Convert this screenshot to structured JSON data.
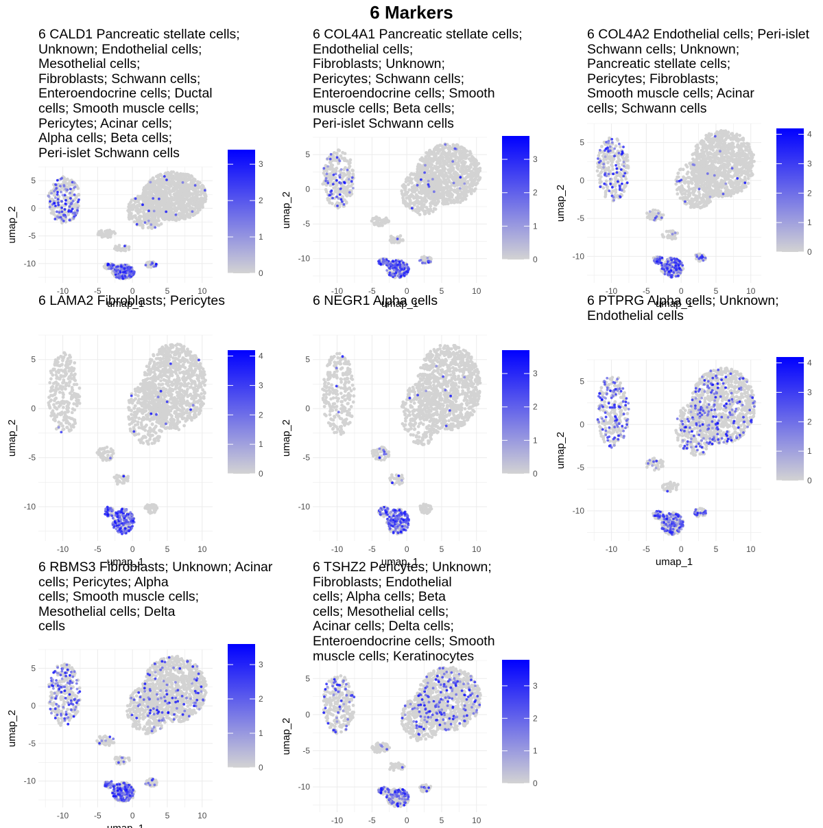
{
  "figure": {
    "title": "6 Markers"
  },
  "axis_labels": {
    "x": "umap_1",
    "y": "umap_2"
  },
  "colors": {
    "low": "#d3d3d3",
    "high": "#0000ff",
    "grid": "#ebebeb"
  },
  "chart_data": [
    {
      "type": "scatter",
      "gene": "CALD1",
      "title": "6 CALD1 Pancreatic stellate cells;\nUnknown; Endothelial cells;\nMesothelial cells;\nFibroblasts; Schwann cells;\nEnteroendocrine cells; Ductal\ncells; Smooth muscle cells;\nPericytes; Acinar cells;\nAlpha cells; Beta cells;\nPeri-islet Schwann cells",
      "xlabel": "umap_1",
      "ylabel": "umap_2",
      "xlim": [
        -13.5,
        11.5
      ],
      "ylim": [
        -13.5,
        7.5
      ],
      "x_ticks": [
        -10,
        -5,
        0,
        5,
        10
      ],
      "y_ticks": [
        5,
        0,
        -5,
        -10
      ],
      "colorbar": {
        "min": 0,
        "max": 3.4,
        "ticks": [
          0,
          1,
          2,
          3
        ]
      },
      "expression": {
        "stellate_cluster": 0.35,
        "main_cluster": 0.02,
        "small_clusters": 0.05,
        "islet_cluster": 0.55,
        "right_cluster": 0.12
      }
    },
    {
      "type": "scatter",
      "gene": "COL4A1",
      "title": "6 COL4A1 Pancreatic stellate cells;\nEndothelial cells;\nFibroblasts; Unknown;\nPericytes; Schwann cells;\nEnteroendocrine cells; Smooth\nmuscle cells; Beta cells;\nPeri-islet Schwann cells",
      "xlabel": "umap_1",
      "ylabel": "umap_2",
      "xlim": [
        -13.5,
        11.5
      ],
      "ylim": [
        -13.5,
        7.5
      ],
      "x_ticks": [
        -10,
        -5,
        0,
        5,
        10
      ],
      "y_ticks": [
        5,
        0,
        -5,
        -10
      ],
      "colorbar": {
        "min": 0,
        "max": 3.7,
        "ticks": [
          0,
          1,
          2,
          3
        ]
      },
      "expression": {
        "stellate_cluster": 0.22,
        "main_cluster": 0.01,
        "small_clusters": 0.04,
        "islet_cluster": 0.6,
        "right_cluster": 0.25
      }
    },
    {
      "type": "scatter",
      "gene": "COL4A2",
      "title": "6 COL4A2 Endothelial cells; Peri-islet\nSchwann cells; Unknown;\nPancreatic stellate cells;\nPericytes; Fibroblasts;\nSmooth muscle cells; Acinar\ncells; Schwann cells",
      "xlabel": "umap_1",
      "ylabel": "umap_2",
      "xlim": [
        -13.5,
        11.5
      ],
      "ylim": [
        -13.5,
        7.5
      ],
      "x_ticks": [
        -10,
        -5,
        0,
        5,
        10
      ],
      "y_ticks": [
        5,
        0,
        -5,
        -10
      ],
      "colorbar": {
        "min": 0,
        "max": 4.2,
        "ticks": [
          0,
          1,
          2,
          3,
          4
        ]
      },
      "expression": {
        "stellate_cluster": 0.25,
        "main_cluster": 0.02,
        "small_clusters": 0.1,
        "islet_cluster": 0.55,
        "right_cluster": 0.3
      }
    },
    {
      "type": "scatter",
      "gene": "LAMA2",
      "title": "6 LAMA2 Fibroblasts; Pericytes",
      "xlabel": "umap_1",
      "ylabel": "umap_2",
      "xlim": [
        -13.5,
        11.5
      ],
      "ylim": [
        -13.5,
        7.5
      ],
      "x_ticks": [
        -10,
        -5,
        0,
        5,
        10
      ],
      "y_ticks": [
        5,
        0,
        -5,
        -10
      ],
      "colorbar": {
        "min": 0,
        "max": 4.2,
        "ticks": [
          0,
          1,
          2,
          3,
          4
        ]
      },
      "expression": {
        "stellate_cluster": 0.01,
        "main_cluster": 0.01,
        "small_clusters": 0.02,
        "islet_cluster": 0.75,
        "right_cluster": 0.02
      }
    },
    {
      "type": "scatter",
      "gene": "NEGR1",
      "title": "6 NEGR1 Alpha cells",
      "xlabel": "umap_1",
      "ylabel": "umap_2",
      "xlim": [
        -13.5,
        11.5
      ],
      "ylim": [
        -13.5,
        7.5
      ],
      "x_ticks": [
        -10,
        -5,
        0,
        5,
        10
      ],
      "y_ticks": [
        5,
        0,
        -5,
        -10
      ],
      "colorbar": {
        "min": 0,
        "max": 3.7,
        "ticks": [
          0,
          1,
          2,
          3
        ]
      },
      "expression": {
        "stellate_cluster": 0.01,
        "main_cluster": 0.01,
        "small_clusters": 0.05,
        "islet_cluster": 0.65,
        "right_cluster": 0.02
      }
    },
    {
      "type": "scatter",
      "gene": "PTPRG",
      "title": "6 PTPRG Alpha cells; Unknown;\nEndothelial cells",
      "xlabel": "umap_1",
      "ylabel": "umap_2",
      "xlim": [
        -13.5,
        11.5
      ],
      "ylim": [
        -13.5,
        7.5
      ],
      "x_ticks": [
        -10,
        -5,
        0,
        5,
        10
      ],
      "y_ticks": [
        5,
        0,
        -5,
        -10
      ],
      "colorbar": {
        "min": 0,
        "max": 4.2,
        "ticks": [
          0,
          1,
          2,
          3,
          4
        ]
      },
      "expression": {
        "stellate_cluster": 0.4,
        "main_cluster": 0.15,
        "small_clusters": 0.1,
        "islet_cluster": 0.45,
        "right_cluster": 0.55
      }
    },
    {
      "type": "scatter",
      "gene": "RBMS3",
      "title": "6 RBMS3 Fibroblasts; Unknown; Acinar\ncells; Pericytes; Alpha\ncells; Smooth muscle cells;\nMesothelial cells; Delta\ncells",
      "xlabel": "umap_1",
      "ylabel": "umap_2",
      "xlim": [
        -13.5,
        11.5
      ],
      "ylim": [
        -13.5,
        7.5
      ],
      "x_ticks": [
        -10,
        -5,
        0,
        5,
        10
      ],
      "y_ticks": [
        5,
        0,
        -5,
        -10
      ],
      "colorbar": {
        "min": 0,
        "max": 3.6,
        "ticks": [
          0,
          1,
          2,
          3
        ]
      },
      "expression": {
        "stellate_cluster": 0.35,
        "main_cluster": 0.08,
        "small_clusters": 0.1,
        "islet_cluster": 0.6,
        "right_cluster": 0.2
      }
    },
    {
      "type": "scatter",
      "gene": "TSHZ2",
      "title": "6 TSHZ2 Pericytes; Unknown;\nFibroblasts; Endothelial\ncells; Alpha cells; Beta\ncells; Mesothelial cells;\nAcinar cells; Delta cells;\nEnteroendocrine cells; Smooth\nmuscle cells; Keratinocytes",
      "xlabel": "umap_1",
      "ylabel": "umap_2",
      "xlim": [
        -13.5,
        11.5
      ],
      "ylim": [
        -13.5,
        7.5
      ],
      "x_ticks": [
        -10,
        -5,
        0,
        5,
        10
      ],
      "y_ticks": [
        5,
        0,
        -5,
        -10
      ],
      "colorbar": {
        "min": 0,
        "max": 3.8,
        "ticks": [
          0,
          1,
          2,
          3
        ]
      },
      "expression": {
        "stellate_cluster": 0.18,
        "main_cluster": 0.12,
        "small_clusters": 0.06,
        "islet_cluster": 0.4,
        "right_cluster": 0.15
      }
    }
  ]
}
